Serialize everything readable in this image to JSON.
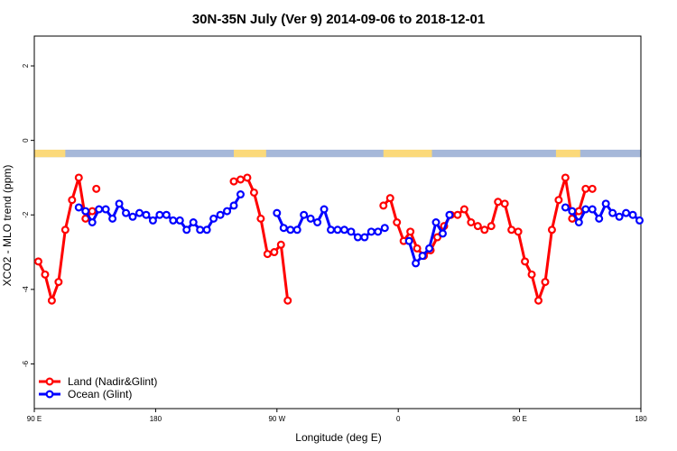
{
  "chart_data": {
    "type": "line",
    "title": "30N-35N July (Ver 9)   2014-09-06 to 2018-12-01",
    "xlabel": "Longitude (deg E)",
    "ylabel": "XCO2 - MLO trend (ppm)",
    "xlim": [
      90,
      540
    ],
    "ylim": [
      -7.2,
      2.8
    ],
    "x_ticks": [
      {
        "value": 90,
        "label": "90 E"
      },
      {
        "value": 180,
        "label": "180"
      },
      {
        "value": 270,
        "label": "90 W"
      },
      {
        "value": 360,
        "label": "0"
      },
      {
        "value": 450,
        "label": "90 E"
      },
      {
        "value": 540,
        "label": "180"
      }
    ],
    "y_ticks": [
      {
        "value": 2,
        "label": "2"
      },
      {
        "value": 0,
        "label": "0"
      },
      {
        "value": -2,
        "label": "-2"
      },
      {
        "value": -4,
        "label": "-4"
      },
      {
        "value": -6,
        "label": "-6"
      }
    ],
    "grid": false,
    "legend_position": "bottom-left",
    "surface_strip": {
      "y_top": -0.25,
      "y_bottom": -0.45,
      "ocean_color": "#a6b8d9",
      "land_color": "#fbd97a",
      "land_ranges": [
        [
          90,
          113
        ],
        [
          238,
          262
        ],
        [
          349,
          385
        ],
        [
          477,
          495
        ]
      ]
    },
    "series": [
      {
        "name": "Land (Nadir&Glint)",
        "color": "#ff0000",
        "segments": [
          {
            "x": [
              93,
              98,
              103,
              108,
              113,
              118,
              123,
              128,
              133
            ],
            "y": [
              -3.25,
              -3.6,
              -4.3,
              -3.8,
              -2.4,
              -1.6,
              -1.0,
              -2.1,
              -1.9
            ]
          },
          {
            "x": [
              136
            ],
            "y": [
              -1.3
            ]
          },
          {
            "x": [
              238,
              243,
              248,
              253,
              258,
              263,
              268,
              273,
              278
            ],
            "y": [
              -1.1,
              -1.05,
              -1.0,
              -1.4,
              -2.1,
              -3.05,
              -3.0,
              -2.8,
              -4.3
            ]
          },
          {
            "x": [
              349,
              354,
              359,
              364,
              369,
              374,
              379,
              384,
              389,
              394,
              399,
              404,
              409,
              414,
              419,
              424,
              429,
              434,
              439,
              444,
              449,
              454,
              459,
              464,
              469,
              474,
              479,
              484,
              489,
              494,
              499,
              504
            ],
            "y": [
              -1.75,
              -1.55,
              -2.2,
              -2.7,
              -2.45,
              -2.9,
              -3.1,
              -2.95,
              -2.6,
              -2.3,
              -2.0,
              -2.0,
              -1.85,
              -2.2,
              -2.3,
              -2.4,
              -2.3,
              -1.65,
              -1.7,
              -2.4,
              -2.45,
              -3.25,
              -3.6,
              -4.3,
              -3.8,
              -2.4,
              -1.6,
              -1.0,
              -2.1,
              -1.9,
              -1.3,
              -1.3
            ]
          }
        ]
      },
      {
        "name": "Ocean (Glint)",
        "color": "#0000ff",
        "segments": [
          {
            "x": [
              123,
              128,
              133,
              138,
              143,
              148,
              153,
              158,
              163,
              168,
              173,
              178,
              183,
              188,
              193,
              198,
              203,
              208,
              213,
              218,
              223,
              228,
              233,
              238,
              243
            ],
            "y": [
              -1.8,
              -1.9,
              -2.2,
              -1.85,
              -1.85,
              -2.1,
              -1.7,
              -1.95,
              -2.05,
              -1.95,
              -2.0,
              -2.15,
              -2.0,
              -2.0,
              -2.15,
              -2.15,
              -2.4,
              -2.2,
              -2.4,
              -2.4,
              -2.1,
              -2.0,
              -1.9,
              -1.75,
              -1.45
            ]
          },
          {
            "x": [
              270,
              275,
              280,
              285,
              290,
              295,
              300,
              305,
              310,
              315,
              320,
              325,
              330,
              335,
              340,
              345,
              350
            ],
            "y": [
              -1.95,
              -2.35,
              -2.4,
              -2.4,
              -2.0,
              -2.1,
              -2.2,
              -1.85,
              -2.4,
              -2.4,
              -2.4,
              -2.45,
              -2.6,
              -2.6,
              -2.45,
              -2.45,
              -2.35
            ]
          },
          {
            "x": [
              368,
              373,
              378,
              383,
              388,
              393,
              398
            ],
            "y": [
              -2.7,
              -3.3,
              -3.1,
              -2.9,
              -2.2,
              -2.5,
              -2.0
            ]
          },
          {
            "x": [
              484,
              489,
              494,
              499,
              504,
              509,
              514,
              519,
              524,
              529,
              534,
              539
            ],
            "y": [
              -1.8,
              -1.9,
              -2.2,
              -1.85,
              -1.85,
              -2.1,
              -1.7,
              -1.95,
              -2.05,
              -1.95,
              -2.0,
              -2.15
            ]
          }
        ]
      }
    ]
  }
}
